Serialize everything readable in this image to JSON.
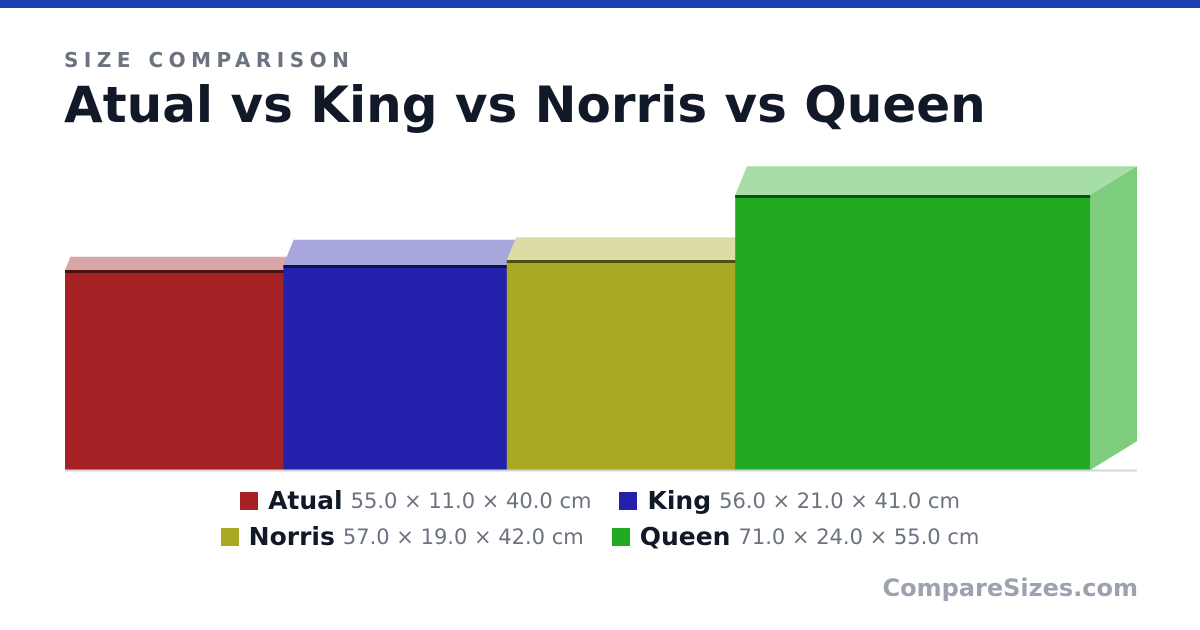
{
  "header": {
    "subtitle": "SIZE COMPARISON",
    "title": "Atual vs King vs Norris vs Queen"
  },
  "colors": {
    "topbar": "#1e40af"
  },
  "chart_data": {
    "type": "bar",
    "title": "Atual vs King vs Norris vs Queen",
    "categories": [
      "Atual",
      "King",
      "Norris",
      "Queen"
    ],
    "units": "cm",
    "series": [
      {
        "name": "Atual",
        "width": 55.0,
        "depth": 11.0,
        "height": 40.0,
        "dims": "55.0 × 11.0 × 40.0 cm",
        "color": "#a62124",
        "top_color": "#d9a6a7",
        "side_color": "#cc7d7f",
        "edge_color": "#4d1011"
      },
      {
        "name": "King",
        "width": 56.0,
        "depth": 21.0,
        "height": 41.0,
        "dims": "56.0 × 21.0 × 41.0 cm",
        "color": "#2321ab",
        "top_color": "#a7a6dd",
        "side_color": "#7f7ecd",
        "edge_color": "#11104f"
      },
      {
        "name": "Norris",
        "width": 57.0,
        "depth": 19.0,
        "height": 42.0,
        "dims": "57.0 × 19.0 × 42.0 cm",
        "color": "#a8a823",
        "top_color": "#dcdca7",
        "side_color": "#cbcb7e",
        "edge_color": "#4e4e10"
      },
      {
        "name": "Queen",
        "width": 71.0,
        "depth": 24.0,
        "height": 55.0,
        "dims": "71.0 × 24.0 × 55.0 cm",
        "color": "#22aa22",
        "top_color": "#a7dea7",
        "side_color": "#7ecd7e",
        "edge_color": "#104f10"
      }
    ]
  },
  "brand": "CompareSizes.com"
}
